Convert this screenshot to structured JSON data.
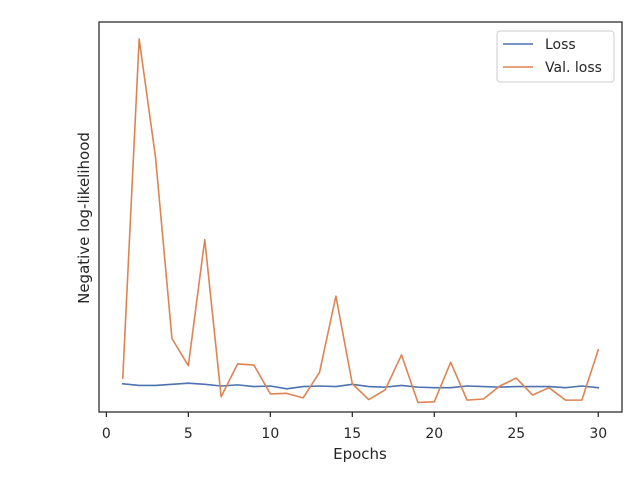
{
  "chart_data": {
    "type": "line",
    "title": "",
    "xlabel": "Epochs",
    "ylabel": "Negative log-likelihood",
    "xlim": [
      -0.45,
      31.45
    ],
    "ylim": [
      -0.1,
      6.8
    ],
    "xticks": [
      0,
      5,
      10,
      15,
      20,
      25,
      30
    ],
    "yticks": [],
    "grid": false,
    "legend_position": "top-right",
    "x": [
      1,
      2,
      3,
      4,
      5,
      6,
      7,
      8,
      9,
      10,
      11,
      12,
      13,
      14,
      15,
      16,
      17,
      18,
      19,
      20,
      21,
      22,
      23,
      24,
      25,
      26,
      27,
      28,
      29,
      30
    ],
    "series": [
      {
        "name": "Loss",
        "color": "#4c72b0",
        "values": [
          0.4,
          0.37,
          0.37,
          0.39,
          0.41,
          0.39,
          0.36,
          0.38,
          0.35,
          0.36,
          0.31,
          0.35,
          0.36,
          0.35,
          0.39,
          0.35,
          0.34,
          0.37,
          0.34,
          0.33,
          0.33,
          0.36,
          0.35,
          0.34,
          0.35,
          0.35,
          0.35,
          0.33,
          0.36,
          0.33
        ]
      },
      {
        "name": "Val. loss",
        "color": "#dd8452",
        "values": [
          0.5,
          6.5,
          4.4,
          1.2,
          0.72,
          2.95,
          0.17,
          0.75,
          0.73,
          0.22,
          0.23,
          0.15,
          0.6,
          1.95,
          0.4,
          0.12,
          0.29,
          0.91,
          0.07,
          0.08,
          0.78,
          0.11,
          0.13,
          0.36,
          0.5,
          0.2,
          0.33,
          0.11,
          0.11,
          1.0
        ]
      }
    ]
  }
}
